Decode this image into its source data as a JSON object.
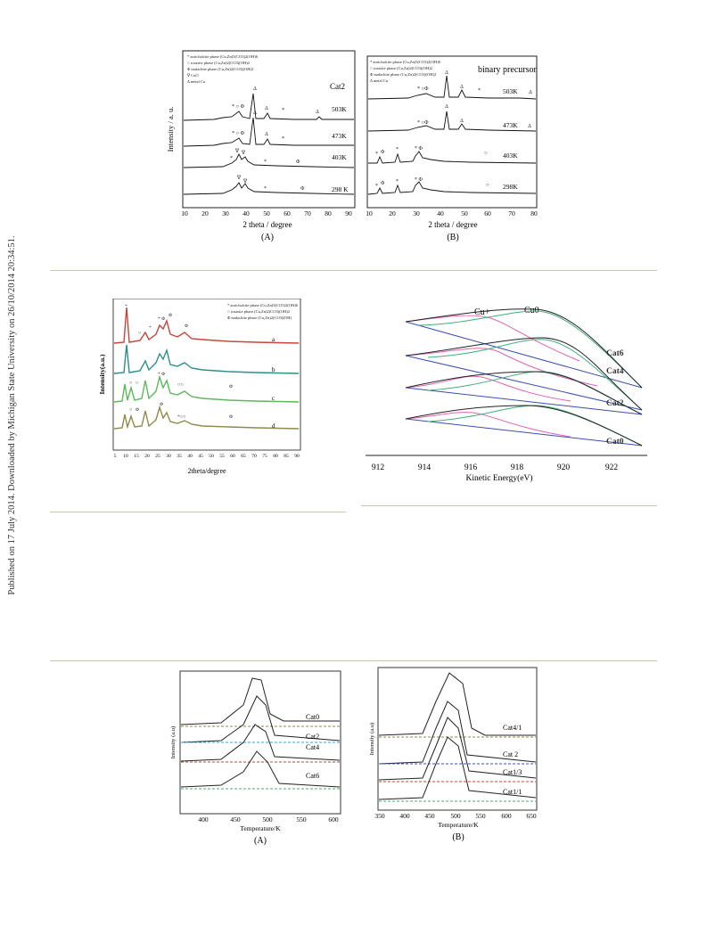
{
  "sidebar": {
    "note": "Published on 17 July 2014. Downloaded by Michigan State University on 26/10/2014 20:34:51."
  },
  "fig1a": {
    "legend": [
      "* aurichalcite phase (Cu,Zn)5(CO3)2(OH)6",
      "○ rosasite phase (Cu,Zn)2(CO3)(OH)2",
      "Φ malachite phase (Cu,Zn)2(CO3)(OH)2",
      "∇ CuO",
      "Δ metal Cu"
    ],
    "series_title": "Cat2",
    "labels": [
      "503K",
      "473K",
      "403K",
      "298 K"
    ],
    "xticks": [
      "10",
      "20",
      "30",
      "40",
      "50",
      "60",
      "70",
      "80",
      "90"
    ],
    "xlabel": "2 theta / degree",
    "ylabel": "Intensity / a. u.",
    "caption": "(A)"
  },
  "fig1b": {
    "legend": [
      "* aurichalcite phase (Cu,Zn)5(CO3)2(OH)6",
      "○ rosasite phase (Cu,Zn)2(CO3)(OH)2",
      "Φ malachite phase (Cu,Zn)2(CO3)(OH)2",
      "Δ metal Cu"
    ],
    "series_title": "binary precursor",
    "labels": [
      "503K",
      "473K",
      "403K",
      "298K"
    ],
    "xticks": [
      "10",
      "20",
      "30",
      "40",
      "50",
      "60",
      "70",
      "80"
    ],
    "xlabel": "2 theta / degree",
    "caption": "(B)"
  },
  "fig2": {
    "legend": [
      "* aurichalcite phase (Cu,Zn)5(CO3)2(OH)6",
      "○ rosasite phase (Cu,Zn)2(CO3)(OH)2",
      "Φ malachite phase (Cu,Zn)2(CO3)(OH)"
    ],
    "labels": [
      "a",
      "b",
      "c",
      "d"
    ],
    "xticks": [
      "5",
      "10",
      "15",
      "20",
      "25",
      "30",
      "35",
      "40",
      "45",
      "50",
      "55",
      "60",
      "65",
      "70",
      "75",
      "80",
      "85",
      "90"
    ],
    "xlabel": "2theta/degree",
    "ylabel": "Intensity(a.u.)"
  },
  "fig3": {
    "cu_plus": "Cu+",
    "cu_zero": "Cu0",
    "labels": [
      "Cat6",
      "Cat4",
      "Cat2",
      "Cat0"
    ],
    "xticks": [
      "912",
      "914",
      "916",
      "918",
      "920",
      "922"
    ],
    "xlabel": "Kinetic Energy(eV)"
  },
  "fig4a": {
    "labels": [
      "Cat0",
      "Cat2",
      "Cat4",
      "Cat6"
    ],
    "xticks": [
      "400",
      "450",
      "500",
      "550",
      "600"
    ],
    "xlabel": "Temperature/K",
    "ylabel": "Intensity (a.u)",
    "caption": "(A)"
  },
  "fig4b": {
    "labels": [
      "Cat4/1",
      "Cat 2",
      "Cat1/3",
      "Cat1/1"
    ],
    "xticks": [
      "350",
      "400",
      "450",
      "500",
      "550",
      "600",
      "650"
    ],
    "xlabel": "Temperature/K",
    "ylabel": "Intensity (a.u)",
    "caption": "(B)"
  },
  "colors": {
    "rule": "#ccc3a8",
    "red": "#c8453a",
    "teal": "#2e8f8c",
    "green": "#5db85a",
    "olive": "#8f8a4a",
    "blue": "#3a4fb0",
    "pink": "#e063b8",
    "seagreen": "#3fae7a"
  }
}
